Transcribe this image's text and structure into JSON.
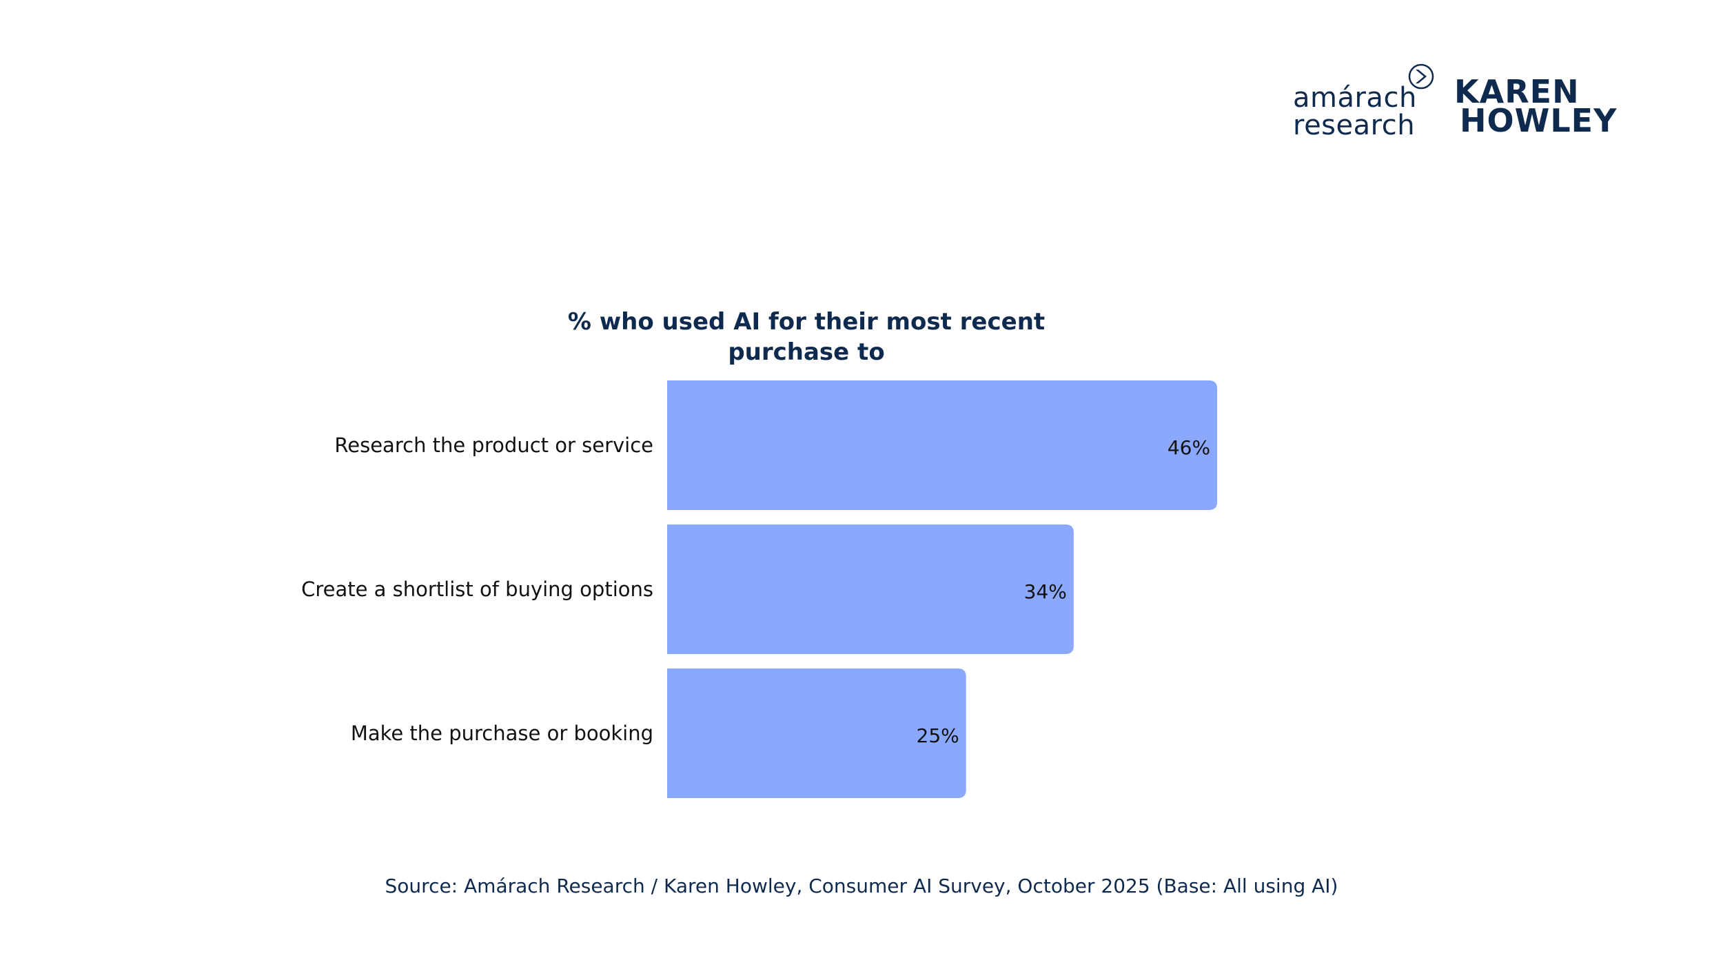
{
  "logos": {
    "amarach": {
      "line1": "amárach",
      "line2": "research"
    },
    "karen_howley": {
      "line1": "KAREN",
      "line2": "HOWLEY"
    }
  },
  "colors": {
    "bar": "#8aa8fd",
    "brand_navy": "#0f2a4f",
    "text": "#111111"
  },
  "chart_data": {
    "type": "bar",
    "orientation": "horizontal",
    "title": "% who used AI for their most recent purchase to",
    "categories": [
      "Research the product or service",
      "Create a shortlist of buying options",
      "Make the purchase or booking"
    ],
    "values": [
      46,
      34,
      25
    ],
    "value_labels": [
      "46%",
      "34%",
      "25%"
    ],
    "unit": "%",
    "xlim": [
      0,
      100
    ],
    "grid": false,
    "legend": "none"
  },
  "source": "Source: Amárach Research / Karen Howley, Consumer AI Survey, October 2025 (Base: All using AI)"
}
